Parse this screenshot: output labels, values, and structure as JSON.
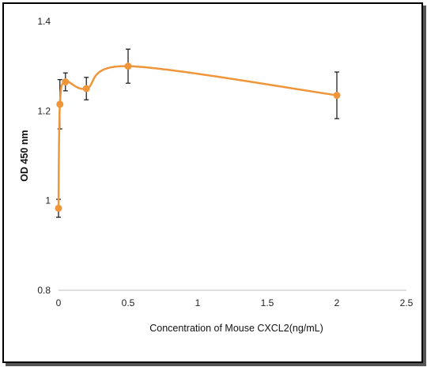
{
  "chart_data": {
    "type": "line",
    "title": "",
    "xlabel": "Concentration of Mouse CXCL2(ng/mL)",
    "ylabel": "OD 450 nm",
    "xlim": [
      0,
      2.5
    ],
    "ylim": [
      0.8,
      1.4
    ],
    "xticks": [
      0,
      0.5,
      1,
      1.5,
      2,
      2.5
    ],
    "xtick_labels": [
      "0",
      "0.5",
      "1",
      "1.5",
      "2",
      "2.5"
    ],
    "yticks": [
      0.8,
      1,
      1.2,
      1.4
    ],
    "ytick_labels": [
      "0.8",
      "1",
      "1.2",
      "1.4"
    ],
    "grid": false,
    "smooth": true,
    "color": "#F0963A",
    "series": [
      {
        "x": [
          0,
          0.01,
          0.05,
          0.2,
          0.5,
          2
        ],
        "y": [
          0.983,
          1.215,
          1.265,
          1.25,
          1.3,
          1.235
        ],
        "err": [
          0.02,
          0.055,
          0.02,
          0.025,
          0.038,
          0.052
        ]
      }
    ]
  }
}
